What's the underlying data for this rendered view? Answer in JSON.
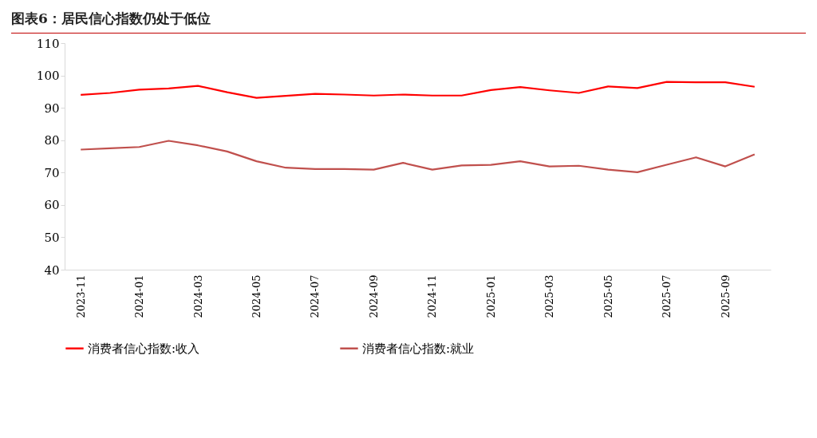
{
  "chart_data": {
    "type": "line",
    "title": "图表6：居民信心指数仍处于低位",
    "categories": [
      "2023-11",
      null,
      "2024-01",
      null,
      "2024-03",
      null,
      "2024-05",
      null,
      "2024-07",
      null,
      "2024-09",
      null,
      "2024-11",
      null,
      "2025-01",
      null,
      "2025-03",
      null,
      "2025-05",
      null,
      "2025-07",
      null,
      "2025-09",
      null
    ],
    "series": [
      {
        "name": "消费者信心指数:收入",
        "color": "#ff0000",
        "values": [
          94.0,
          94.6,
          95.6,
          96.0,
          96.8,
          94.8,
          93.1,
          93.7,
          94.3,
          94.1,
          93.8,
          94.1,
          93.8,
          93.8,
          95.5,
          96.4,
          95.4,
          94.6,
          96.6,
          96.1,
          98.0,
          97.9,
          97.9,
          96.5
        ]
      },
      {
        "name": "消费者信心指数:就业",
        "color": "#c0504d",
        "values": [
          77.1,
          77.5,
          77.9,
          79.8,
          78.4,
          76.5,
          73.5,
          71.5,
          71.1,
          71.1,
          70.9,
          73.0,
          70.9,
          72.2,
          72.4,
          73.5,
          71.9,
          72.1,
          70.9,
          70.1,
          72.4,
          74.7,
          71.9,
          75.6
        ]
      }
    ],
    "ylim": [
      40,
      110
    ],
    "yticks": [
      40,
      50,
      60,
      70,
      80,
      90,
      100,
      110
    ],
    "grid": false,
    "legend": "bottom",
    "marker": "none",
    "line_style": "solid"
  }
}
